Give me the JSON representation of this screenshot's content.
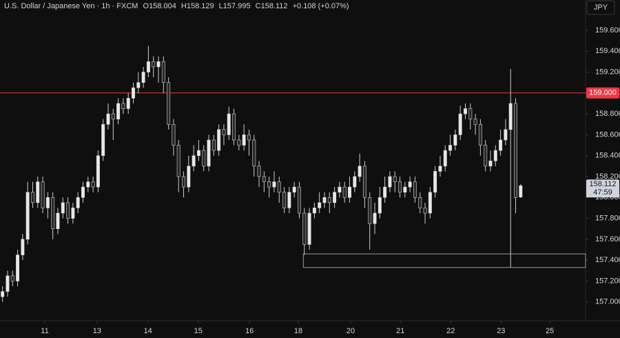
{
  "header": {
    "symbol": "U.S. Dollar / Japanese Yen · 1h · FXCM",
    "ohlc": [
      {
        "label": "O",
        "value": "158.004"
      },
      {
        "label": "H",
        "value": "158.129"
      },
      {
        "label": "L",
        "value": "157.995"
      },
      {
        "label": "C",
        "value": "158.112"
      }
    ],
    "change": "+0.108 (+0.07%)",
    "currency": "JPY"
  },
  "chart_data": {
    "type": "candlestick",
    "x": [
      0,
      1,
      2,
      3,
      4,
      5,
      6,
      7,
      8,
      9,
      10,
      11,
      12,
      13,
      14,
      15,
      16,
      17,
      18,
      19,
      20,
      21,
      22,
      23,
      24,
      25,
      26,
      27,
      28,
      29,
      30,
      31,
      32,
      33,
      34,
      35,
      36,
      37,
      38,
      39,
      40,
      41,
      42,
      43,
      44,
      45,
      46,
      47,
      48,
      49,
      50,
      51,
      52,
      53,
      54,
      55,
      56,
      57,
      58,
      59,
      60,
      61,
      62,
      63,
      64,
      65,
      66,
      67,
      68,
      69,
      70,
      71,
      72,
      73,
      74,
      75,
      76,
      77,
      78,
      79,
      80,
      81,
      82,
      83,
      84,
      85,
      86,
      87,
      88,
      89,
      90,
      91,
      92,
      93,
      94,
      95,
      96,
      97,
      98,
      99,
      100,
      101,
      102,
      103
    ],
    "open": [
      157.05,
      157.1,
      157.25,
      157.2,
      157.45,
      157.6,
      158.05,
      157.95,
      158.15,
      157.9,
      158.0,
      157.7,
      157.85,
      157.95,
      157.8,
      157.9,
      158.0,
      158.1,
      158.15,
      158.1,
      158.4,
      158.7,
      158.8,
      158.75,
      158.9,
      158.85,
      158.95,
      159.05,
      159.1,
      159.2,
      159.3,
      159.25,
      159.3,
      159.1,
      158.7,
      158.5,
      158.2,
      158.1,
      158.3,
      158.4,
      158.45,
      158.3,
      158.55,
      158.45,
      158.65,
      158.6,
      158.8,
      158.55,
      158.5,
      158.6,
      158.55,
      158.3,
      158.2,
      158.15,
      158.1,
      158.15,
      158.05,
      157.9,
      158.05,
      158.1,
      157.85,
      157.55,
      157.85,
      157.9,
      157.95,
      158.0,
      157.95,
      158.05,
      158.1,
      158.0,
      158.1,
      158.2,
      158.3,
      158.0,
      157.75,
      157.85,
      158.0,
      158.1,
      158.2,
      158.15,
      158.05,
      158.1,
      158.15,
      158.0,
      157.9,
      157.85,
      158.05,
      158.25,
      158.3,
      158.45,
      158.5,
      158.6,
      158.8,
      158.85,
      158.75,
      158.7,
      158.5,
      158.3,
      158.35,
      158.45,
      158.55,
      158.65,
      158.9,
      158.004
    ],
    "high": [
      157.15,
      157.3,
      157.3,
      157.5,
      157.65,
      158.15,
      158.15,
      158.2,
      158.2,
      158.05,
      158.05,
      157.9,
      158.0,
      158.0,
      157.95,
      158.05,
      158.15,
      158.2,
      158.2,
      158.45,
      158.75,
      158.9,
      158.85,
      158.95,
      158.95,
      159.0,
      159.1,
      159.2,
      159.25,
      159.45,
      159.35,
      159.35,
      159.35,
      159.15,
      158.75,
      158.55,
      158.25,
      158.4,
      158.5,
      158.55,
      158.5,
      158.6,
      158.6,
      158.7,
      158.7,
      158.87,
      158.85,
      158.6,
      158.7,
      158.65,
      158.6,
      158.35,
      158.25,
      158.2,
      158.25,
      158.2,
      158.1,
      158.1,
      158.15,
      158.15,
      157.9,
      157.9,
      157.95,
      158.05,
      158.05,
      158.05,
      158.1,
      158.15,
      158.15,
      158.2,
      158.25,
      158.42,
      158.35,
      158.05,
      157.95,
      158.1,
      158.2,
      158.25,
      158.25,
      158.2,
      158.15,
      158.2,
      158.2,
      158.05,
      157.95,
      158.1,
      158.3,
      158.4,
      158.5,
      158.6,
      158.65,
      158.88,
      158.9,
      158.9,
      158.8,
      158.75,
      158.55,
      158.45,
      158.5,
      158.65,
      158.75,
      159.23,
      158.95,
      158.129
    ],
    "low": [
      157.0,
      157.05,
      157.15,
      157.15,
      157.4,
      157.55,
      157.9,
      157.9,
      157.85,
      157.8,
      157.6,
      157.65,
      157.8,
      157.75,
      157.75,
      157.85,
      157.95,
      158.05,
      158.05,
      158.05,
      158.35,
      158.65,
      158.55,
      158.7,
      158.8,
      158.8,
      158.9,
      159.0,
      159.05,
      159.15,
      159.15,
      159.1,
      159.0,
      158.65,
      158.4,
      158.05,
      158.0,
      158.05,
      158.25,
      158.35,
      158.25,
      158.25,
      158.4,
      158.4,
      158.5,
      158.55,
      158.5,
      158.45,
      158.45,
      158.4,
      158.2,
      158.1,
      158.05,
      158.0,
      158.05,
      157.95,
      157.85,
      157.85,
      158.0,
      157.8,
      157.45,
      157.5,
      157.8,
      157.85,
      157.9,
      157.85,
      157.9,
      158.0,
      157.95,
      157.95,
      158.05,
      158.15,
      157.9,
      157.5,
      157.65,
      157.8,
      157.95,
      158.05,
      158.05,
      158.0,
      158.0,
      158.05,
      157.95,
      157.85,
      157.75,
      157.8,
      158.0,
      158.2,
      158.25,
      158.4,
      158.45,
      158.55,
      158.75,
      158.65,
      158.6,
      158.4,
      158.25,
      158.25,
      158.3,
      158.4,
      158.5,
      157.33,
      157.85,
      157.995
    ],
    "close": [
      157.1,
      157.25,
      157.2,
      157.45,
      157.6,
      158.05,
      157.95,
      158.15,
      157.9,
      158.0,
      157.7,
      157.85,
      157.95,
      157.8,
      157.9,
      158.0,
      158.1,
      158.15,
      158.1,
      158.4,
      158.7,
      158.8,
      158.75,
      158.9,
      158.85,
      158.95,
      159.05,
      159.1,
      159.2,
      159.3,
      159.25,
      159.3,
      159.1,
      158.7,
      158.5,
      158.2,
      158.1,
      158.3,
      158.4,
      158.45,
      158.3,
      158.55,
      158.45,
      158.65,
      158.6,
      158.8,
      158.55,
      158.5,
      158.6,
      158.55,
      158.3,
      158.2,
      158.15,
      158.1,
      158.15,
      158.05,
      157.9,
      158.05,
      158.1,
      157.85,
      157.55,
      157.85,
      157.9,
      157.95,
      158.0,
      157.95,
      158.05,
      158.1,
      158.0,
      158.1,
      158.2,
      158.3,
      158.0,
      157.75,
      157.85,
      158.0,
      158.1,
      158.2,
      158.15,
      158.05,
      158.1,
      158.15,
      158.0,
      157.9,
      157.85,
      158.05,
      158.25,
      158.3,
      158.45,
      158.5,
      158.6,
      158.8,
      158.85,
      158.75,
      158.7,
      158.5,
      158.3,
      158.35,
      158.45,
      158.55,
      158.65,
      158.9,
      158.0,
      158.112
    ],
    "up_color": "#e8e8e8",
    "down_color": "#2a2a2a",
    "wick_color": "#cfcfcf",
    "xlim": [
      -0.5,
      115.9
    ],
    "xticks": [
      {
        "value": 8.4,
        "label": "11"
      },
      {
        "value": 18.8,
        "label": "13"
      },
      {
        "value": 28.9,
        "label": "14"
      },
      {
        "value": 38.9,
        "label": "15"
      },
      {
        "value": 49.1,
        "label": "16"
      },
      {
        "value": 58.8,
        "label": "18"
      },
      {
        "value": 69.2,
        "label": "20"
      },
      {
        "value": 79.1,
        "label": "21"
      },
      {
        "value": 89.1,
        "label": "22"
      },
      {
        "value": 99.1,
        "label": "23"
      },
      {
        "value": 108.8,
        "label": "25"
      }
    ],
    "ylim": [
      156.82,
      159.89
    ],
    "yticks": [
      {
        "value": 157,
        "label": "157.000"
      },
      {
        "value": 157.2,
        "label": "157.200"
      },
      {
        "value": 157.4,
        "label": "157.400"
      },
      {
        "value": 157.6,
        "label": "157.600"
      },
      {
        "value": 157.8,
        "label": "157.800"
      },
      {
        "value": 158,
        "label": "158.000"
      },
      {
        "value": 158.2,
        "label": "158.200"
      },
      {
        "value": 158.4,
        "label": "158.400"
      },
      {
        "value": 158.6,
        "label": "158.600"
      },
      {
        "value": 158.8,
        "label": "158.800"
      },
      {
        "value": 159,
        "label": "159.000"
      },
      {
        "value": 159.2,
        "label": "159.200"
      },
      {
        "value": 159.4,
        "label": "159.400"
      },
      {
        "value": 159.6,
        "label": "159.600"
      }
    ],
    "level": {
      "value": 159,
      "label": "159.000",
      "color": "#f23645"
    },
    "zone": {
      "x_start": 59.8,
      "low": 157.33,
      "high": 157.46,
      "color": "#9a9a9a"
    },
    "last_price": {
      "value": 158.112,
      "label": "158.112",
      "countdown": "47:59"
    }
  }
}
